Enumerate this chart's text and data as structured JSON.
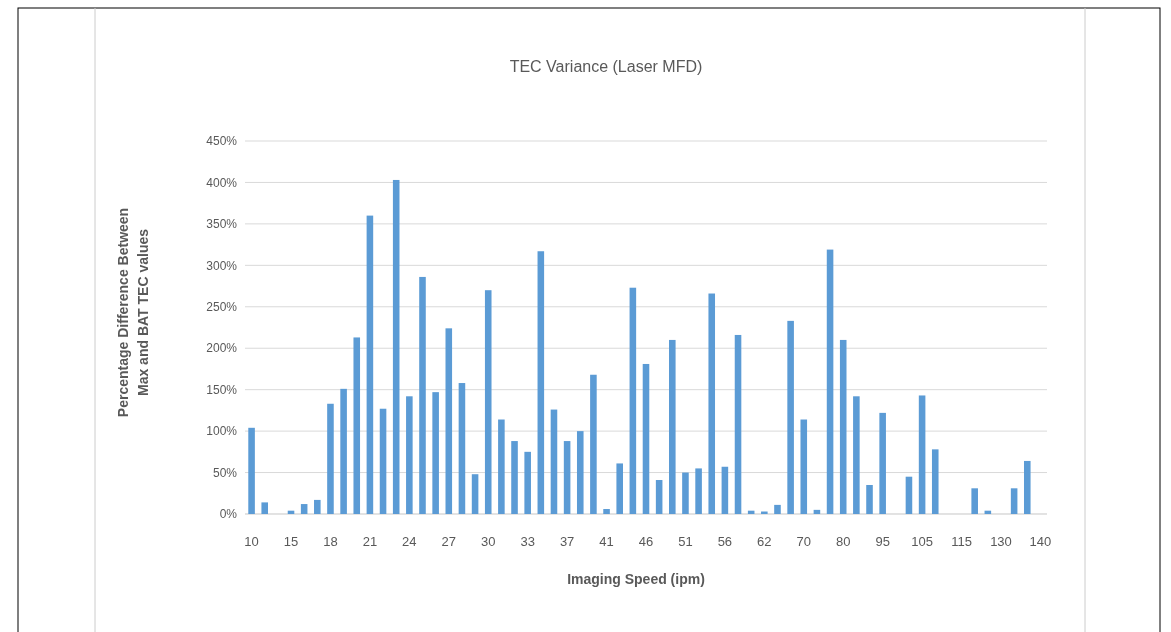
{
  "chart_data": {
    "type": "bar",
    "title": "TEC Variance (Laser MFD)",
    "xlabel": "Imaging Speed (ipm)",
    "ylabel": "Percentage Difference Between\nMax and BAT TEC values",
    "categories": [
      "10",
      null,
      null,
      "15",
      null,
      null,
      "18",
      null,
      null,
      "21",
      null,
      null,
      "24",
      null,
      null,
      "27",
      null,
      null,
      "30",
      null,
      null,
      "33",
      null,
      null,
      "37",
      null,
      null,
      "41",
      null,
      null,
      "46",
      null,
      null,
      "51",
      null,
      null,
      "56",
      null,
      null,
      "62",
      null,
      null,
      "70",
      null,
      null,
      "80",
      null,
      null,
      "95",
      null,
      null,
      "105",
      null,
      null,
      "115",
      null,
      null,
      "130",
      null,
      null,
      "140"
    ],
    "values": [
      104,
      14,
      0,
      4,
      12,
      17,
      133,
      151,
      213,
      360,
      127,
      403,
      142,
      286,
      147,
      224,
      158,
      48,
      270,
      114,
      88,
      75,
      317,
      126,
      88,
      100,
      168,
      6,
      61,
      273,
      181,
      41,
      210,
      50,
      55,
      266,
      57,
      216,
      4,
      3,
      11,
      233,
      114,
      5,
      319,
      210,
      142,
      35,
      122,
      0,
      45,
      143,
      78,
      0,
      0,
      31,
      4,
      0,
      31,
      64,
      0
    ],
    "color": "#5b9bd5",
    "ylim": [
      0,
      450
    ],
    "yticks": [
      {
        "value": 0,
        "label": "0%"
      },
      {
        "value": 50,
        "label": "50%"
      },
      {
        "value": 100,
        "label": "100%"
      },
      {
        "value": 150,
        "label": "150%"
      },
      {
        "value": 200,
        "label": "200%"
      },
      {
        "value": 250,
        "label": "250%"
      },
      {
        "value": 300,
        "label": "300%"
      },
      {
        "value": 350,
        "label": "350%"
      },
      {
        "value": 400,
        "label": "400%"
      },
      {
        "value": 450,
        "label": "450%"
      }
    ],
    "grid": "y"
  }
}
